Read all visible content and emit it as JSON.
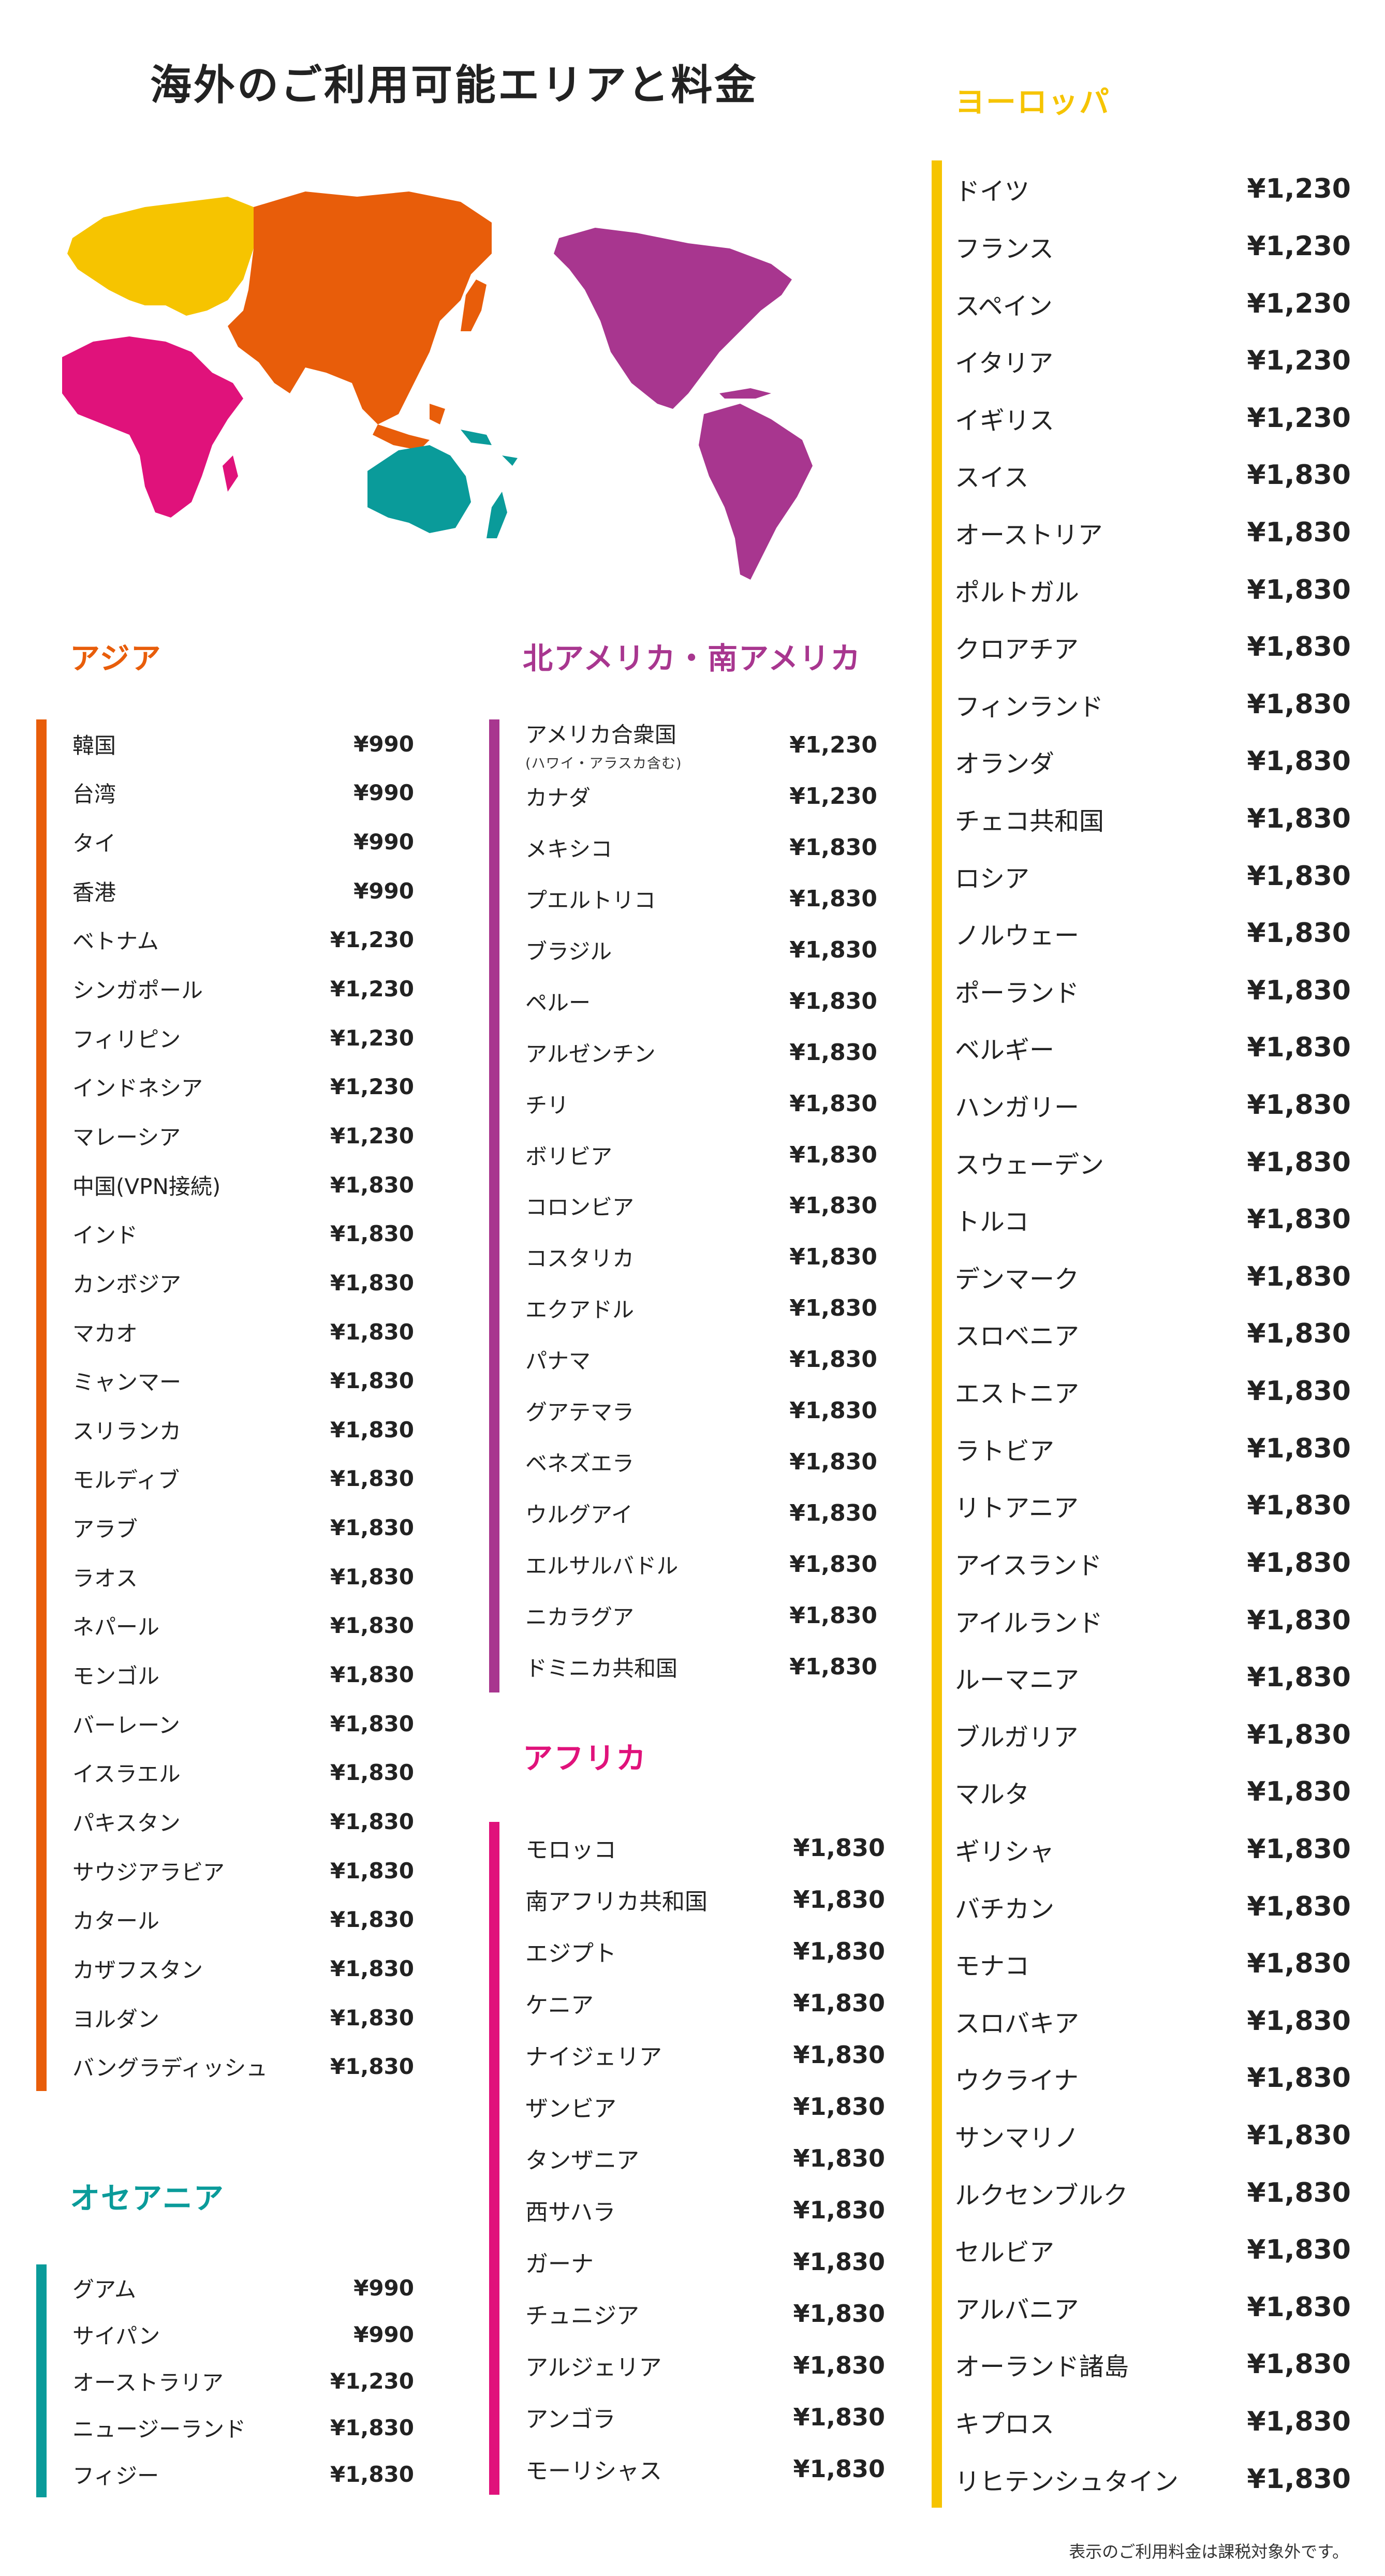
{
  "title": "海外のご利用可能エリアと料金",
  "colors": {
    "asia": "#e85d0a",
    "oceania": "#0a9b9a",
    "americas": "#a8368f",
    "africa": "#e0127b",
    "europe": "#f6c400"
  },
  "regions": {
    "asia": {
      "heading": "アジア",
      "items": [
        {
          "name": "韓国",
          "price": "¥990"
        },
        {
          "name": "台湾",
          "price": "¥990"
        },
        {
          "name": "タイ",
          "price": "¥990"
        },
        {
          "name": "香港",
          "price": "¥990"
        },
        {
          "name": "ベトナム",
          "price": "¥1,230"
        },
        {
          "name": "シンガポール",
          "price": "¥1,230"
        },
        {
          "name": "フィリピン",
          "price": "¥1,230"
        },
        {
          "name": "インドネシア",
          "price": "¥1,230"
        },
        {
          "name": "マレーシア",
          "price": "¥1,230"
        },
        {
          "name": "中国(VPN接続)",
          "price": "¥1,830"
        },
        {
          "name": "インド",
          "price": "¥1,830"
        },
        {
          "name": "カンボジア",
          "price": "¥1,830"
        },
        {
          "name": "マカオ",
          "price": "¥1,830"
        },
        {
          "name": "ミャンマー",
          "price": "¥1,830"
        },
        {
          "name": "スリランカ",
          "price": "¥1,830"
        },
        {
          "name": "モルディブ",
          "price": "¥1,830"
        },
        {
          "name": "アラブ",
          "price": "¥1,830"
        },
        {
          "name": "ラオス",
          "price": "¥1,830"
        },
        {
          "name": "ネパール",
          "price": "¥1,830"
        },
        {
          "name": "モンゴル",
          "price": "¥1,830"
        },
        {
          "name": "バーレーン",
          "price": "¥1,830"
        },
        {
          "name": "イスラエル",
          "price": "¥1,830"
        },
        {
          "name": "パキスタン",
          "price": "¥1,830"
        },
        {
          "name": "サウジアラビア",
          "price": "¥1,830"
        },
        {
          "name": "カタール",
          "price": "¥1,830"
        },
        {
          "name": "カザフスタン",
          "price": "¥1,830"
        },
        {
          "name": "ヨルダン",
          "price": "¥1,830"
        },
        {
          "name": "バングラディッシュ",
          "price": "¥1,830"
        }
      ]
    },
    "oceania": {
      "heading": "オセアニア",
      "items": [
        {
          "name": "グアム",
          "price": "¥990"
        },
        {
          "name": "サイパン",
          "price": "¥990"
        },
        {
          "name": "オーストラリア",
          "price": "¥1,230"
        },
        {
          "name": "ニュージーランド",
          "price": "¥1,830"
        },
        {
          "name": "フィジー",
          "price": "¥1,830"
        }
      ]
    },
    "americas": {
      "heading": "北アメリカ・南アメリカ",
      "items": [
        {
          "name": "アメリカ合衆国",
          "sub": "(ハワイ・アラスカ含む)",
          "price": "¥1,230"
        },
        {
          "name": "カナダ",
          "price": "¥1,230"
        },
        {
          "name": "メキシコ",
          "price": "¥1,830"
        },
        {
          "name": "プエルトリコ",
          "price": "¥1,830"
        },
        {
          "name": "ブラジル",
          "price": "¥1,830"
        },
        {
          "name": "ペルー",
          "price": "¥1,830"
        },
        {
          "name": "アルゼンチン",
          "price": "¥1,830"
        },
        {
          "name": "チリ",
          "price": "¥1,830"
        },
        {
          "name": "ボリビア",
          "price": "¥1,830"
        },
        {
          "name": "コロンビア",
          "price": "¥1,830"
        },
        {
          "name": "コスタリカ",
          "price": "¥1,830"
        },
        {
          "name": "エクアドル",
          "price": "¥1,830"
        },
        {
          "name": "パナマ",
          "price": "¥1,830"
        },
        {
          "name": "グアテマラ",
          "price": "¥1,830"
        },
        {
          "name": "ベネズエラ",
          "price": "¥1,830"
        },
        {
          "name": "ウルグアイ",
          "price": "¥1,830"
        },
        {
          "name": "エルサルバドル",
          "price": "¥1,830"
        },
        {
          "name": "ニカラグア",
          "price": "¥1,830"
        },
        {
          "name": "ドミニカ共和国",
          "price": "¥1,830"
        }
      ]
    },
    "africa": {
      "heading": "アフリカ",
      "items": [
        {
          "name": "モロッコ",
          "price": "¥1,830"
        },
        {
          "name": "南アフリカ共和国",
          "price": "¥1,830"
        },
        {
          "name": "エジプト",
          "price": "¥1,830"
        },
        {
          "name": "ケニア",
          "price": "¥1,830"
        },
        {
          "name": "ナイジェリア",
          "price": "¥1,830"
        },
        {
          "name": "ザンビア",
          "price": "¥1,830"
        },
        {
          "name": "タンザニア",
          "price": "¥1,830"
        },
        {
          "name": "西サハラ",
          "price": "¥1,830"
        },
        {
          "name": "ガーナ",
          "price": "¥1,830"
        },
        {
          "name": "チュニジア",
          "price": "¥1,830"
        },
        {
          "name": "アルジェリア",
          "price": "¥1,830"
        },
        {
          "name": "アンゴラ",
          "price": "¥1,830"
        },
        {
          "name": "モーリシャス",
          "price": "¥1,830"
        }
      ]
    },
    "europe": {
      "heading": "ヨーロッパ",
      "items": [
        {
          "name": "ドイツ",
          "price": "¥1,230"
        },
        {
          "name": "フランス",
          "price": "¥1,230"
        },
        {
          "name": "スペイン",
          "price": "¥1,230"
        },
        {
          "name": "イタリア",
          "price": "¥1,230"
        },
        {
          "name": "イギリス",
          "price": "¥1,230"
        },
        {
          "name": "スイス",
          "price": "¥1,830"
        },
        {
          "name": "オーストリア",
          "price": "¥1,830"
        },
        {
          "name": "ポルトガル",
          "price": "¥1,830"
        },
        {
          "name": "クロアチア",
          "price": "¥1,830"
        },
        {
          "name": "フィンランド",
          "price": "¥1,830"
        },
        {
          "name": "オランダ",
          "price": "¥1,830"
        },
        {
          "name": "チェコ共和国",
          "price": "¥1,830"
        },
        {
          "name": "ロシア",
          "price": "¥1,830"
        },
        {
          "name": "ノルウェー",
          "price": "¥1,830"
        },
        {
          "name": "ポーランド",
          "price": "¥1,830"
        },
        {
          "name": "ベルギー",
          "price": "¥1,830"
        },
        {
          "name": "ハンガリー",
          "price": "¥1,830"
        },
        {
          "name": "スウェーデン",
          "price": "¥1,830"
        },
        {
          "name": "トルコ",
          "price": "¥1,830"
        },
        {
          "name": "デンマーク",
          "price": "¥1,830"
        },
        {
          "name": "スロベニア",
          "price": "¥1,830"
        },
        {
          "name": "エストニア",
          "price": "¥1,830"
        },
        {
          "name": "ラトビア",
          "price": "¥1,830"
        },
        {
          "name": "リトアニア",
          "price": "¥1,830"
        },
        {
          "name": "アイスランド",
          "price": "¥1,830"
        },
        {
          "name": "アイルランド",
          "price": "¥1,830"
        },
        {
          "name": "ルーマニア",
          "price": "¥1,830"
        },
        {
          "name": "ブルガリア",
          "price": "¥1,830"
        },
        {
          "name": "マルタ",
          "price": "¥1,830"
        },
        {
          "name": "ギリシャ",
          "price": "¥1,830"
        },
        {
          "name": "バチカン",
          "price": "¥1,830"
        },
        {
          "name": "モナコ",
          "price": "¥1,830"
        },
        {
          "name": "スロバキア",
          "price": "¥1,830"
        },
        {
          "name": "ウクライナ",
          "price": "¥1,830"
        },
        {
          "name": "サンマリノ",
          "price": "¥1,830"
        },
        {
          "name": "ルクセンブルク",
          "price": "¥1,830"
        },
        {
          "name": "セルビア",
          "price": "¥1,830"
        },
        {
          "name": "アルバニア",
          "price": "¥1,830"
        },
        {
          "name": "オーランド諸島",
          "price": "¥1,830"
        },
        {
          "name": "キプロス",
          "price": "¥1,830"
        },
        {
          "name": "リヒテンシュタイン",
          "price": "¥1,830"
        }
      ]
    }
  },
  "footnote": "表示のご利用料金は課税対象外です。"
}
